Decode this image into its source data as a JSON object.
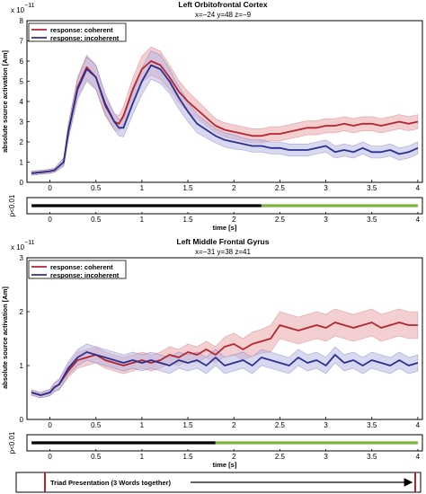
{
  "chart_data": [
    {
      "type": "line",
      "title": "Left Orbitofrontal Cortex",
      "subtitle": "x=−24 y=48 z=−9",
      "xlabel": "time [s]",
      "ylabel": "absolute source activation [Am]",
      "exponent": "x 10",
      "exponent_power": "−11",
      "xlim": [
        -0.25,
        4.05
      ],
      "ylim": [
        0,
        8
      ],
      "xticks": [
        0,
        0.5,
        1,
        1.5,
        2,
        2.5,
        3,
        3.5,
        4
      ],
      "xtick_labels": [
        "0",
        "0.5",
        "1",
        "1.5",
        "2",
        "2.5",
        "3",
        "3.5",
        "4"
      ],
      "yticks": [
        0,
        1,
        2,
        3,
        4,
        5,
        6,
        7,
        8
      ],
      "ytick_labels": [
        "0",
        "1",
        "2",
        "3",
        "4",
        "5",
        "6",
        "7",
        "8"
      ],
      "legend_position": "top-left",
      "x": [
        -0.2,
        -0.1,
        0,
        0.05,
        0.1,
        0.15,
        0.2,
        0.3,
        0.4,
        0.5,
        0.6,
        0.7,
        0.75,
        0.8,
        0.9,
        1,
        1.1,
        1.2,
        1.3,
        1.4,
        1.5,
        1.6,
        1.7,
        1.8,
        1.9,
        2,
        2.1,
        2.2,
        2.3,
        2.4,
        2.5,
        2.6,
        2.7,
        2.8,
        2.9,
        3,
        3.1,
        3.2,
        3.3,
        3.4,
        3.5,
        3.6,
        3.7,
        3.8,
        3.9,
        4
      ],
      "series": [
        {
          "name": "response: coherent",
          "color": "#b5242e",
          "band_color": "#e9a7ab",
          "values": [
            0.45,
            0.5,
            0.55,
            0.6,
            0.8,
            1.0,
            2.5,
            4.7,
            5.7,
            5.2,
            3.8,
            3.0,
            2.9,
            3.3,
            4.6,
            5.6,
            6.0,
            5.8,
            5.2,
            4.5,
            4.0,
            3.6,
            3.2,
            2.8,
            2.6,
            2.5,
            2.4,
            2.3,
            2.3,
            2.4,
            2.4,
            2.5,
            2.6,
            2.7,
            2.7,
            2.8,
            2.8,
            2.9,
            2.8,
            2.9,
            2.9,
            2.8,
            2.9,
            3.0,
            2.9,
            3.0
          ],
          "band_half_width": [
            0.1,
            0.1,
            0.1,
            0.1,
            0.15,
            0.2,
            0.35,
            0.5,
            0.6,
            0.6,
            0.5,
            0.4,
            0.4,
            0.45,
            0.55,
            0.65,
            0.7,
            0.7,
            0.6,
            0.55,
            0.5,
            0.45,
            0.4,
            0.35,
            0.35,
            0.35,
            0.35,
            0.35,
            0.35,
            0.35,
            0.35,
            0.35,
            0.35,
            0.35,
            0.35,
            0.35,
            0.35,
            0.35,
            0.35,
            0.35,
            0.35,
            0.35,
            0.35,
            0.35,
            0.35,
            0.35
          ]
        },
        {
          "name": "response: incoherent",
          "color": "#2b2f8f",
          "band_color": "#b8b8e3",
          "values": [
            0.45,
            0.5,
            0.55,
            0.6,
            0.8,
            1.0,
            2.5,
            4.6,
            5.6,
            5.2,
            3.9,
            3.0,
            2.7,
            2.7,
            3.9,
            5.0,
            5.8,
            5.6,
            5.0,
            4.2,
            3.5,
            2.9,
            2.6,
            2.3,
            2.1,
            2.0,
            1.9,
            1.8,
            1.8,
            1.7,
            1.7,
            1.6,
            1.6,
            1.6,
            1.7,
            1.8,
            1.5,
            1.6,
            1.5,
            1.7,
            1.5,
            1.5,
            1.6,
            1.4,
            1.5,
            1.7
          ],
          "band_half_width": [
            0.1,
            0.1,
            0.1,
            0.1,
            0.15,
            0.2,
            0.35,
            0.5,
            0.6,
            0.6,
            0.5,
            0.4,
            0.4,
            0.45,
            0.55,
            0.65,
            0.7,
            0.7,
            0.6,
            0.55,
            0.5,
            0.45,
            0.4,
            0.35,
            0.35,
            0.35,
            0.3,
            0.3,
            0.3,
            0.3,
            0.3,
            0.3,
            0.3,
            0.3,
            0.3,
            0.3,
            0.3,
            0.3,
            0.3,
            0.3,
            0.3,
            0.3,
            0.3,
            0.3,
            0.3,
            0.3
          ]
        }
      ],
      "significance": {
        "ylabel": "p<0.01",
        "xlabel": "time [s]",
        "segments": [
          {
            "from": -0.2,
            "to": 2.3,
            "color": "#000000"
          },
          {
            "from": 2.3,
            "to": 4.0,
            "color": "#7bb33c"
          }
        ]
      }
    },
    {
      "type": "line",
      "title": "Left Middle Frontal Gyrus",
      "subtitle": "x=−31 y=38 z=41",
      "xlabel": "time [s]",
      "ylabel": "absolute source activation [Am]",
      "exponent": "x 10",
      "exponent_power": "−11",
      "xlim": [
        -0.25,
        4.05
      ],
      "ylim": [
        0,
        3
      ],
      "xticks": [
        0,
        0.5,
        1,
        1.5,
        2,
        2.5,
        3,
        3.5,
        4
      ],
      "xtick_labels": [
        "0",
        "0.5",
        "1",
        "1.5",
        "2",
        "2.5",
        "3",
        "3.5",
        "4"
      ],
      "yticks": [
        0,
        1,
        2,
        3
      ],
      "ytick_labels": [
        "0",
        "1",
        "2",
        "3"
      ],
      "legend_position": "top-left",
      "x": [
        -0.2,
        -0.1,
        0,
        0.05,
        0.1,
        0.2,
        0.3,
        0.4,
        0.5,
        0.6,
        0.7,
        0.8,
        0.9,
        1,
        1.1,
        1.2,
        1.3,
        1.4,
        1.5,
        1.6,
        1.7,
        1.8,
        1.9,
        2,
        2.1,
        2.2,
        2.3,
        2.4,
        2.5,
        2.6,
        2.7,
        2.8,
        2.9,
        3,
        3.1,
        3.2,
        3.3,
        3.4,
        3.5,
        3.6,
        3.7,
        3.8,
        3.9,
        4
      ],
      "series": [
        {
          "name": "response: coherent",
          "color": "#b5242e",
          "band_color": "#e9a7ab",
          "values": [
            0.5,
            0.45,
            0.5,
            0.6,
            0.65,
            0.9,
            1.1,
            1.15,
            1.2,
            1.1,
            1.05,
            1.0,
            1.05,
            1.1,
            1.05,
            1.1,
            1.2,
            1.15,
            1.25,
            1.2,
            1.3,
            1.2,
            1.35,
            1.4,
            1.3,
            1.4,
            1.45,
            1.5,
            1.75,
            1.7,
            1.65,
            1.7,
            1.75,
            1.7,
            1.8,
            1.75,
            1.7,
            1.75,
            1.8,
            1.7,
            1.75,
            1.8,
            1.75,
            1.75
          ],
          "band_half_width": [
            0.05,
            0.05,
            0.06,
            0.08,
            0.1,
            0.12,
            0.15,
            0.15,
            0.15,
            0.15,
            0.15,
            0.15,
            0.15,
            0.15,
            0.15,
            0.15,
            0.15,
            0.15,
            0.15,
            0.15,
            0.15,
            0.15,
            0.18,
            0.2,
            0.2,
            0.22,
            0.22,
            0.25,
            0.25,
            0.25,
            0.25,
            0.25,
            0.25,
            0.25,
            0.25,
            0.25,
            0.25,
            0.25,
            0.25,
            0.25,
            0.25,
            0.25,
            0.25,
            0.25
          ]
        },
        {
          "name": "response: incoherent",
          "color": "#2b2f8f",
          "band_color": "#b8b8e3",
          "values": [
            0.5,
            0.45,
            0.5,
            0.6,
            0.65,
            0.95,
            1.15,
            1.25,
            1.2,
            1.15,
            1.1,
            1.05,
            1.1,
            1.05,
            1.1,
            1.05,
            1.0,
            1.1,
            1.05,
            1.1,
            1.0,
            1.15,
            1.0,
            1.05,
            1.1,
            1.0,
            1.15,
            1.1,
            1.05,
            1.0,
            1.15,
            1.05,
            1.1,
            1.0,
            1.2,
            1.05,
            1.1,
            1.0,
            1.1,
            1.05,
            1.0,
            1.1,
            1.0,
            1.05
          ],
          "band_half_width": [
            0.05,
            0.05,
            0.06,
            0.08,
            0.1,
            0.12,
            0.15,
            0.15,
            0.15,
            0.15,
            0.15,
            0.15,
            0.15,
            0.15,
            0.15,
            0.15,
            0.15,
            0.15,
            0.15,
            0.15,
            0.15,
            0.15,
            0.15,
            0.15,
            0.15,
            0.15,
            0.15,
            0.15,
            0.15,
            0.15,
            0.15,
            0.15,
            0.15,
            0.15,
            0.15,
            0.15,
            0.15,
            0.15,
            0.15,
            0.15,
            0.15,
            0.15,
            0.15,
            0.15
          ]
        }
      ],
      "significance": {
        "ylabel": "p<0.01",
        "xlabel": "time [s]",
        "segments": [
          {
            "from": -0.2,
            "to": 1.8,
            "color": "#000000"
          },
          {
            "from": 1.8,
            "to": 4.0,
            "color": "#7bb33c"
          }
        ]
      }
    }
  ],
  "timeline": {
    "label": "Triad Presentation (3 Words together)",
    "marker_color": "#b5242e"
  }
}
